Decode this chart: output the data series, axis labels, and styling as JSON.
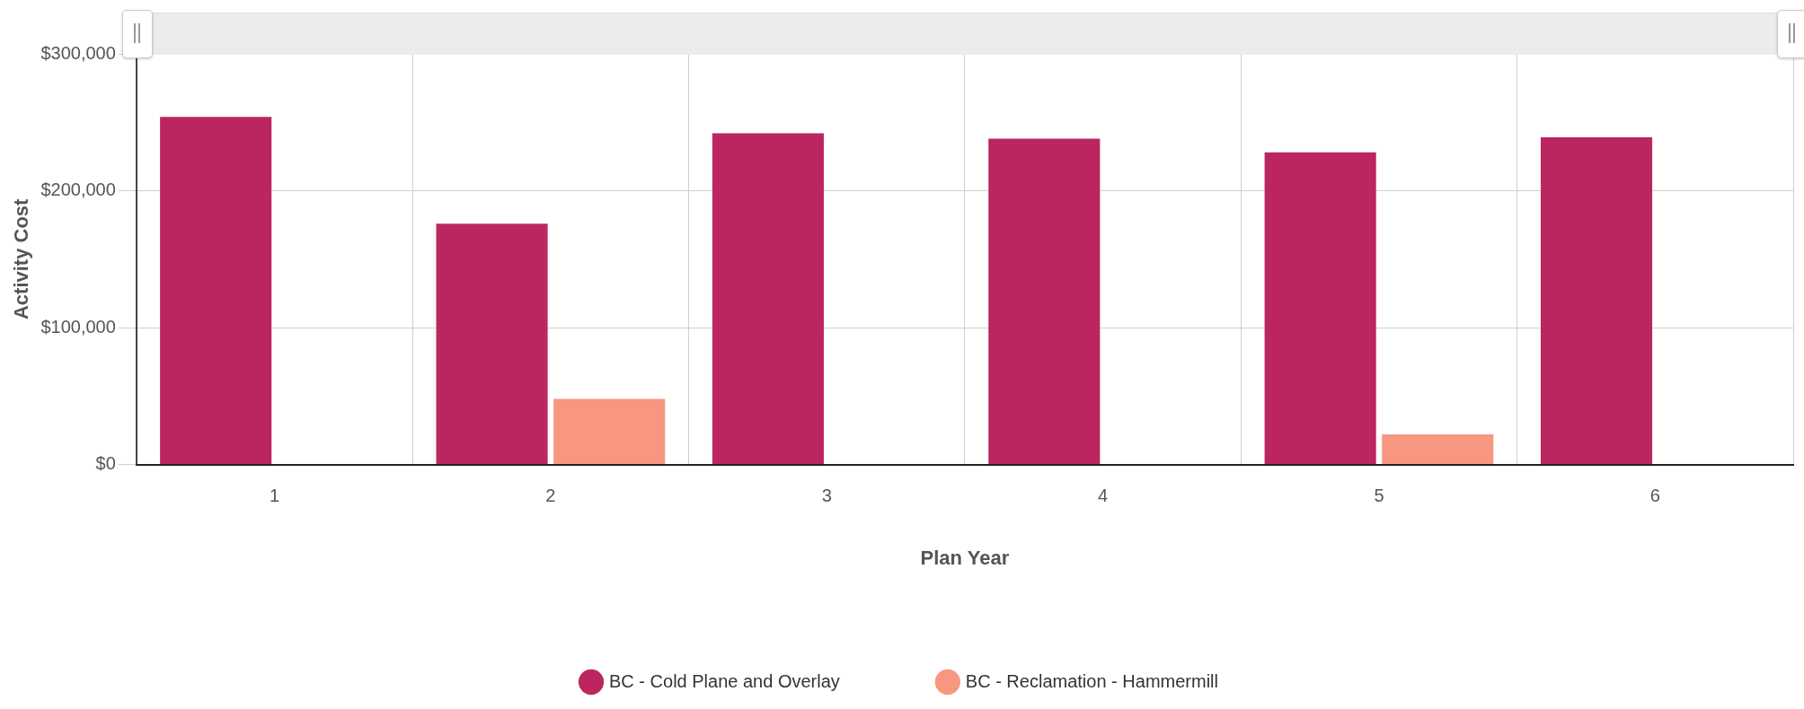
{
  "chart_data": {
    "type": "bar",
    "xlabel": "Plan Year",
    "ylabel": "Activity Cost",
    "categories": [
      "1",
      "2",
      "3",
      "4",
      "5",
      "6"
    ],
    "series": [
      {
        "name": "BC - Cold Plane and Overlay",
        "color": "#bb2660",
        "values": [
          254000,
          176000,
          242000,
          238000,
          228000,
          239000
        ]
      },
      {
        "name": "BC - Reclamation - Hammermill",
        "color": "#f79780",
        "values": [
          0,
          48000,
          0,
          0,
          22000,
          0
        ]
      }
    ],
    "ylim": [
      0,
      300000
    ],
    "yticks": [
      {
        "value": 0,
        "label": "$0"
      },
      {
        "value": 100000,
        "label": "$100,000"
      },
      {
        "value": 200000,
        "label": "$200,000"
      },
      {
        "value": 300000,
        "label": "$300,000"
      }
    ],
    "grid": true,
    "legend": "bottom"
  }
}
